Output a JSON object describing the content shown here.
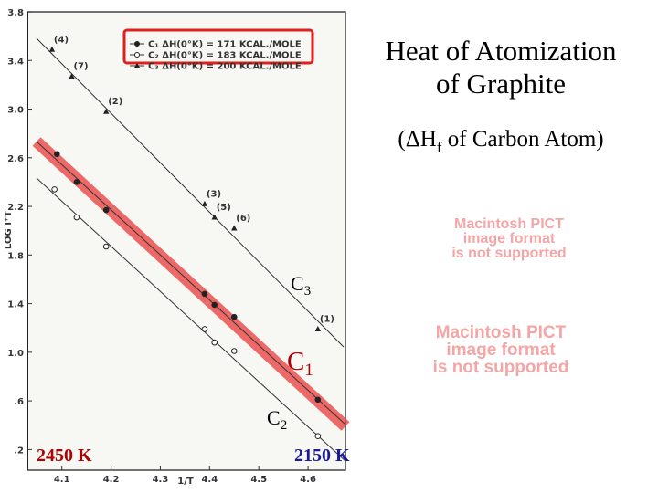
{
  "chart_data": {
    "type": "scatter",
    "title": "Heat of Atomization of Graphite",
    "subtitle": {
      "before": "(ΔH",
      "sub": "f",
      "after": " of Carbon Atom)"
    },
    "x_label": "1/T",
    "y_label": "LOG I⁺T",
    "xlim": [
      4.03,
      4.676
    ],
    "ylim": [
      0.03,
      3.8
    ],
    "xticks": [
      4.1,
      4.2,
      4.3,
      4.4,
      4.5,
      4.6
    ],
    "yticks": [
      {
        "value": 0.2,
        "label": ".2"
      },
      {
        "value": 0.6,
        "label": ".6"
      },
      {
        "value": 1.0,
        "label": "1.0"
      },
      1.4,
      1.8,
      2.2,
      2.6,
      {
        "value": 3.0,
        "label": "3.0"
      },
      3.4,
      3.8
    ],
    "series": [
      {
        "name": "C₁ ΔH(0°K) = 171 KCAL./MOLE",
        "marker": "filled",
        "color": "#222222",
        "x": [
          4.09,
          4.13,
          4.19,
          4.39,
          4.41,
          4.45,
          4.62
        ],
        "values": [
          2.63,
          2.4,
          2.17,
          1.48,
          1.39,
          1.29,
          0.61
        ]
      },
      {
        "name": "C₂ ΔH(0°K) = 183 KCAL./MOLE",
        "marker": "open",
        "color": "#222222",
        "x": [
          4.085,
          4.13,
          4.19,
          4.39,
          4.41,
          4.45,
          4.62
        ],
        "values": [
          2.34,
          2.11,
          1.87,
          1.19,
          1.08,
          1.01,
          0.31
        ]
      },
      {
        "name": "C₃ ΔH(0°K) = 200 KCAL./MOLE",
        "marker": "triangle",
        "color": "#222222",
        "x": [
          4.08,
          4.12,
          4.19,
          4.39,
          4.41,
          4.45,
          4.62
        ],
        "values": [
          3.49,
          3.27,
          2.98,
          2.22,
          2.11,
          2.02,
          1.19
        ],
        "point_labels": [
          "(4)",
          "(7)",
          "(2)",
          "(3)",
          "(5)",
          "(6)",
          "(1)"
        ]
      }
    ],
    "annotations": {
      "c3": {
        "base": "C",
        "sub": "3"
      },
      "c1": {
        "base": "C",
        "sub": "1"
      },
      "c2": {
        "base": "C",
        "sub": "2"
      },
      "left_temp": "2450 K",
      "right_temp": "2150 K"
    },
    "placeholders": [
      [
        "Macintosh PICT",
        "image format",
        "is not supported"
      ],
      [
        "Macintosh PICT",
        "image format",
        "is not supported"
      ]
    ]
  }
}
